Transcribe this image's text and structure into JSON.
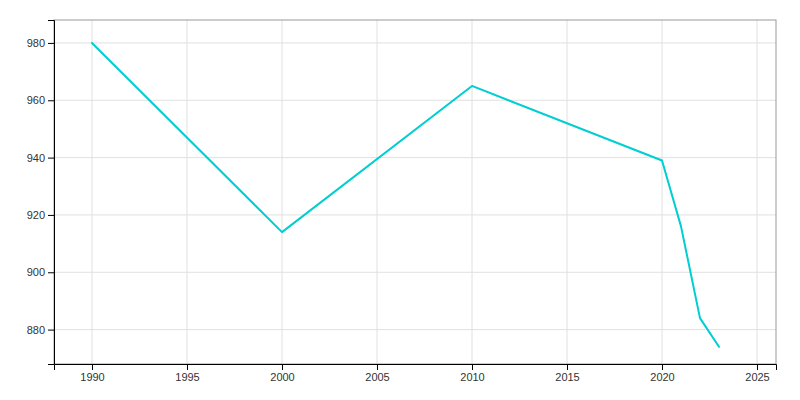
{
  "chart_data": {
    "type": "line",
    "x": [
      1990,
      2000,
      2010,
      2020,
      2021,
      2022,
      2023
    ],
    "values": [
      980,
      914,
      965,
      939,
      916,
      884,
      874
    ],
    "color": "#00CED1",
    "xlim": [
      1988,
      2026
    ],
    "ylim": [
      868,
      988
    ],
    "xticks": [
      1990,
      1995,
      2000,
      2005,
      2010,
      2015,
      2020,
      2025
    ],
    "yticks": [
      880,
      900,
      920,
      940,
      960,
      980
    ],
    "grid": true
  }
}
